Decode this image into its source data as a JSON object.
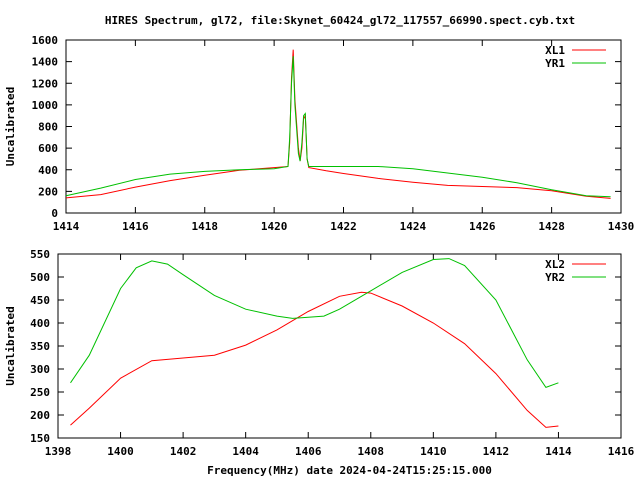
{
  "title": "HIRES Spectrum, gl72, file:Skynet_60424_gl72_117557_66990.spect.cyb.txt",
  "chart_data": [
    {
      "type": "line",
      "xlabel": "",
      "ylabel": "Uncalibrated",
      "xlim": [
        1414,
        1430
      ],
      "ylim": [
        0,
        1600
      ],
      "xticks": [
        1414,
        1416,
        1418,
        1420,
        1422,
        1424,
        1426,
        1428,
        1430
      ],
      "yticks": [
        0,
        200,
        400,
        600,
        800,
        1000,
        1200,
        1400,
        1600
      ],
      "legend": "top-right",
      "grid": false,
      "series": [
        {
          "name": "XL1",
          "color": "#ff0000",
          "x": [
            1414,
            1415,
            1416,
            1417,
            1418,
            1419,
            1420,
            1420.4,
            1420.45,
            1420.5,
            1420.55,
            1420.6,
            1420.7,
            1420.75,
            1420.8,
            1420.85,
            1420.9,
            1420.95,
            1421,
            1421.5,
            1422,
            1423,
            1424,
            1425,
            1426,
            1427,
            1428,
            1429,
            1429.7
          ],
          "y": [
            140,
            170,
            240,
            300,
            350,
            395,
            420,
            430,
            650,
            1250,
            1510,
            1050,
            600,
            480,
            600,
            870,
            900,
            500,
            420,
            390,
            365,
            320,
            285,
            255,
            245,
            235,
            205,
            155,
            135
          ]
        },
        {
          "name": "YR1",
          "color": "#00c000",
          "x": [
            1414,
            1415,
            1416,
            1417,
            1418,
            1419,
            1420,
            1420.4,
            1420.45,
            1420.5,
            1420.55,
            1420.6,
            1420.7,
            1420.75,
            1420.8,
            1420.85,
            1420.9,
            1420.95,
            1421,
            1422,
            1423,
            1424,
            1425,
            1426,
            1427,
            1428,
            1429,
            1429.7
          ],
          "y": [
            160,
            230,
            310,
            360,
            385,
            400,
            410,
            430,
            700,
            1200,
            1450,
            1000,
            550,
            480,
            650,
            900,
            920,
            500,
            430,
            430,
            430,
            410,
            370,
            330,
            280,
            215,
            160,
            150
          ]
        }
      ]
    },
    {
      "type": "line",
      "xlabel": "Frequency(MHz) date 2024-04-24T15:25:15.000",
      "ylabel": "Uncalibrated",
      "xlim": [
        1398,
        1416
      ],
      "ylim": [
        150,
        550
      ],
      "xticks": [
        1398,
        1400,
        1402,
        1404,
        1406,
        1408,
        1410,
        1412,
        1414,
        1416
      ],
      "yticks": [
        150,
        200,
        250,
        300,
        350,
        400,
        450,
        500,
        550
      ],
      "legend": "top-right",
      "grid": false,
      "series": [
        {
          "name": "XL2",
          "color": "#ff0000",
          "x": [
            1398.4,
            1399,
            1400,
            1401,
            1402,
            1403,
            1404,
            1405,
            1406,
            1407,
            1407.7,
            1408,
            1409,
            1410,
            1411,
            1412,
            1413,
            1413.6,
            1414
          ],
          "y": [
            178,
            215,
            280,
            318,
            324,
            330,
            352,
            385,
            425,
            458,
            467,
            465,
            437,
            400,
            355,
            290,
            210,
            173,
            176
          ]
        },
        {
          "name": "YR2",
          "color": "#00c000",
          "x": [
            1398.4,
            1399,
            1400,
            1400.5,
            1401,
            1401.5,
            1402,
            1403,
            1404,
            1405,
            1405.5,
            1406.5,
            1407,
            1408,
            1409,
            1410,
            1410.5,
            1411,
            1412,
            1413,
            1413.6,
            1414
          ],
          "y": [
            270,
            330,
            475,
            520,
            535,
            528,
            505,
            460,
            430,
            415,
            410,
            415,
            430,
            470,
            510,
            538,
            540,
            525,
            450,
            320,
            260,
            270
          ]
        }
      ]
    }
  ]
}
